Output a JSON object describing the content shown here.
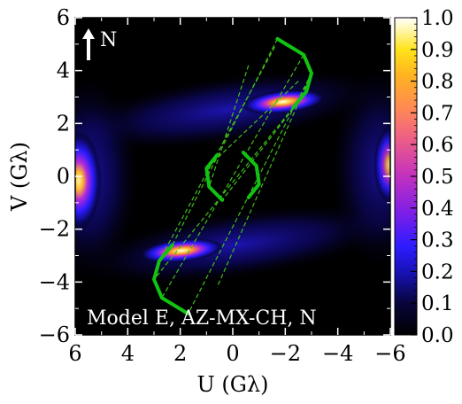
{
  "chart_data": {
    "type": "heatmap",
    "title": "",
    "xlabel": "U (Gλ)",
    "ylabel": "V (Gλ)",
    "xlim": [
      6,
      -6
    ],
    "ylim": [
      -6,
      6
    ],
    "x_ticks": [
      "6",
      "4",
      "2",
      "0",
      "−2",
      "−4",
      "−6"
    ],
    "y_ticks": [
      "−6",
      "−4",
      "−2",
      "0",
      "2",
      "4",
      "6"
    ],
    "colorbar": {
      "range": [
        0.0,
        1.0
      ],
      "ticks": [
        "0.0",
        "0.1",
        "0.2",
        "0.3",
        "0.4",
        "0.5",
        "0.6",
        "0.7",
        "0.8",
        "0.9",
        "1.0"
      ],
      "colormap": "gnuplot2-like (black → blue → purple → orange → yellow → white)"
    },
    "annotations": {
      "model_label": "Model E, AZ-MX-CH, N",
      "north_label": "N"
    },
    "intensity_peaks": [
      {
        "u": 6.0,
        "v": 0.0,
        "value": 0.9
      },
      {
        "u": -6.0,
        "v": 0.6,
        "value": 0.75
      },
      {
        "u": -2.0,
        "v": 2.85,
        "value": 0.95
      },
      {
        "u": 2.0,
        "v": -2.75,
        "value": 0.9
      }
    ],
    "uv_tracks": [
      {
        "name": "",
        "points": [
          [
            -1.7,
            5.2
          ],
          [
            -2.7,
            4.6
          ],
          [
            -3.0,
            3.9
          ],
          [
            -2.8,
            3.2
          ],
          [
            -2.3,
            2.6
          ]
        ]
      },
      {
        "name": "",
        "points": [
          [
            1.7,
            -5.2
          ],
          [
            2.7,
            -4.6
          ],
          [
            3.0,
            -3.9
          ],
          [
            2.8,
            -3.2
          ],
          [
            2.3,
            -2.6
          ]
        ]
      },
      {
        "name": "",
        "points": [
          [
            0.4,
            -0.9
          ],
          [
            0.9,
            -0.4
          ],
          [
            1.0,
            0.3
          ],
          [
            0.6,
            0.8
          ]
        ]
      },
      {
        "name": "",
        "points": [
          [
            -0.4,
            0.9
          ],
          [
            -0.9,
            0.4
          ],
          [
            -1.0,
            -0.3
          ],
          [
            -0.6,
            -0.8
          ]
        ]
      }
    ],
    "baseline_pairs": [
      [
        [
          -1.7,
          5.2
        ],
        [
          2.3,
          -2.6
        ]
      ],
      [
        [
          -2.7,
          4.6
        ],
        [
          2.7,
          -4.6
        ]
      ],
      [
        [
          -3.0,
          3.9
        ],
        [
          1.7,
          -5.2
        ]
      ],
      [
        [
          -2.3,
          2.6
        ],
        [
          3.0,
          -3.9
        ]
      ],
      [
        [
          -2.8,
          3.2
        ],
        [
          0.4,
          -0.9
        ]
      ],
      [
        [
          -3.0,
          3.9
        ],
        [
          0.6,
          -4.2
        ]
      ],
      [
        [
          -1.6,
          4.9
        ],
        [
          2.8,
          -3.2
        ]
      ],
      [
        [
          -2.5,
          3.6
        ],
        [
          1.0,
          0.3
        ]
      ],
      [
        [
          -0.6,
          4.2
        ],
        [
          0.9,
          -0.4
        ]
      ]
    ]
  }
}
